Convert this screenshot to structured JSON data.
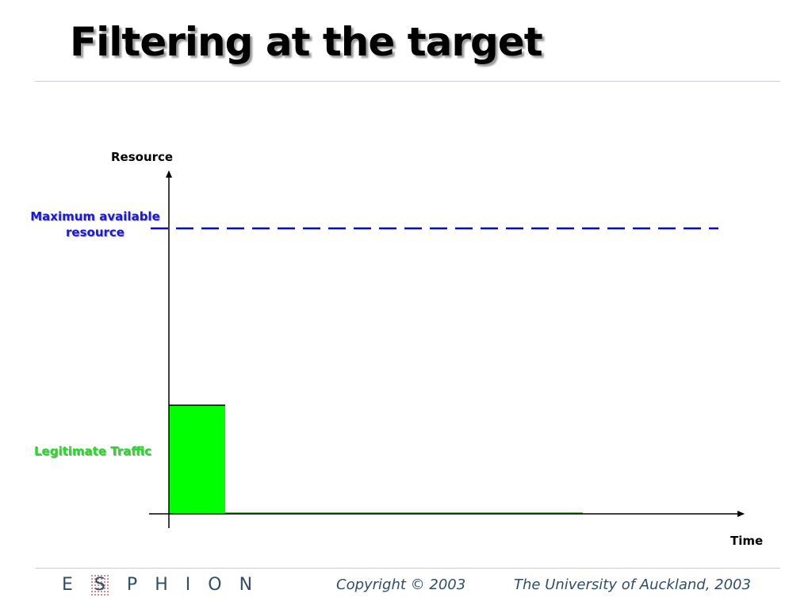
{
  "slide": {
    "title": "Filtering at the target"
  },
  "diagram": {
    "y_axis_label": "Resource",
    "x_axis_label": "Time",
    "max_line_label": "Maximum available resource",
    "legit_label": "Legitimate Traffic",
    "colors": {
      "max_line": "#0a0ac8",
      "legit_fill": "#00ff00",
      "axis": "#000000"
    }
  },
  "footer": {
    "logo_letters": [
      "E",
      "S",
      "P",
      "H",
      "I",
      "O",
      "N"
    ],
    "copyright": "Copyright © 2003",
    "university": "The University of Auckland, 2003"
  }
}
